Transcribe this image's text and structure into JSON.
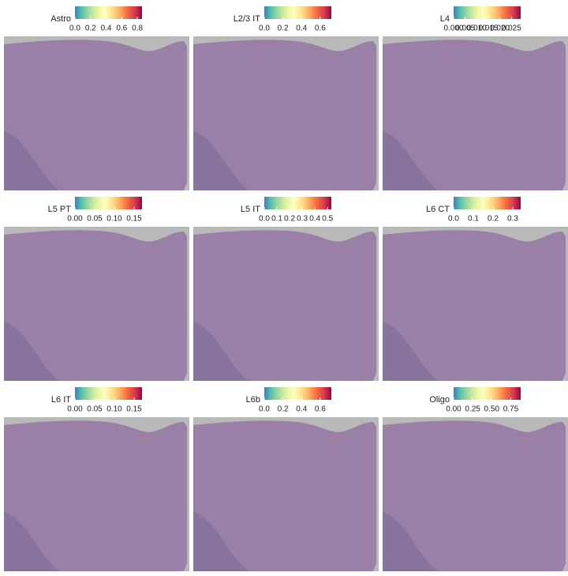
{
  "chart_data": [
    {
      "type": "spatial",
      "title": "Astro",
      "clim": [
        0,
        0.86
      ],
      "colorbar_ticks": [
        {
          "value": 0,
          "label": "0.0"
        },
        {
          "value": 0.2,
          "label": "0.2"
        },
        {
          "value": 0.4,
          "label": "0.4"
        },
        {
          "value": 0.6,
          "label": "0.6"
        },
        {
          "value": 0.8,
          "label": "0.8"
        }
      ],
      "colormap": [
        "#3288bd",
        "#66c2a5",
        "#abdda4",
        "#e6f598",
        "#ffffbf",
        "#fee08b",
        "#fdae61",
        "#f46d43",
        "#d53e4f",
        "#9e0142"
      ]
    },
    {
      "type": "spatial",
      "title": "L2/3 IT",
      "clim": [
        0,
        0.72
      ],
      "colorbar_ticks": [
        {
          "value": 0,
          "label": "0.0"
        },
        {
          "value": 0.2,
          "label": "0.2"
        },
        {
          "value": 0.4,
          "label": "0.4"
        },
        {
          "value": 0.6,
          "label": "0.6"
        }
      ],
      "colormap": [
        "#3288bd",
        "#66c2a5",
        "#abdda4",
        "#e6f598",
        "#ffffbf",
        "#fee08b",
        "#fdae61",
        "#f46d43",
        "#d53e4f",
        "#9e0142"
      ]
    },
    {
      "type": "spatial",
      "title": "L4",
      "clim": [
        0,
        0.029
      ],
      "colorbar_ticks": [
        {
          "value": 0,
          "label": "0.000"
        },
        {
          "value": 0.005,
          "label": "0.005"
        },
        {
          "value": 0.01,
          "label": "0.010"
        },
        {
          "value": 0.015,
          "label": "0.015"
        },
        {
          "value": 0.02,
          "label": "0.020"
        },
        {
          "value": 0.025,
          "label": "0.025"
        }
      ],
      "colormap": [
        "#3288bd",
        "#66c2a5",
        "#abdda4",
        "#e6f598",
        "#ffffbf",
        "#fee08b",
        "#fdae61",
        "#f46d43",
        "#d53e4f",
        "#9e0142"
      ]
    },
    {
      "type": "spatial",
      "title": "L5 PT",
      "clim": [
        0,
        0.17
      ],
      "colorbar_ticks": [
        {
          "value": 0,
          "label": "0.00"
        },
        {
          "value": 0.05,
          "label": "0.05"
        },
        {
          "value": 0.1,
          "label": "0.10"
        },
        {
          "value": 0.15,
          "label": "0.15"
        }
      ],
      "colormap": [
        "#3288bd",
        "#66c2a5",
        "#abdda4",
        "#e6f598",
        "#ffffbf",
        "#fee08b",
        "#fdae61",
        "#f46d43",
        "#d53e4f",
        "#9e0142"
      ]
    },
    {
      "type": "spatial",
      "title": "L5 IT",
      "clim": [
        0,
        0.53
      ],
      "colorbar_ticks": [
        {
          "value": 0,
          "label": "0.0"
        },
        {
          "value": 0.1,
          "label": "0.1"
        },
        {
          "value": 0.2,
          "label": "0.2"
        },
        {
          "value": 0.3,
          "label": "0.3"
        },
        {
          "value": 0.4,
          "label": "0.4"
        },
        {
          "value": 0.5,
          "label": "0.5"
        }
      ],
      "colormap": [
        "#3288bd",
        "#66c2a5",
        "#abdda4",
        "#e6f598",
        "#ffffbf",
        "#fee08b",
        "#fdae61",
        "#f46d43",
        "#d53e4f",
        "#9e0142"
      ]
    },
    {
      "type": "spatial",
      "title": "L6 CT",
      "clim": [
        0,
        0.34
      ],
      "colorbar_ticks": [
        {
          "value": 0,
          "label": "0.0"
        },
        {
          "value": 0.1,
          "label": "0.1"
        },
        {
          "value": 0.2,
          "label": "0.2"
        },
        {
          "value": 0.3,
          "label": "0.3"
        }
      ],
      "colormap": [
        "#3288bd",
        "#66c2a5",
        "#abdda4",
        "#e6f598",
        "#ffffbf",
        "#fee08b",
        "#fdae61",
        "#f46d43",
        "#d53e4f",
        "#9e0142"
      ]
    },
    {
      "type": "spatial",
      "title": "L6 IT",
      "clim": [
        0,
        0.17
      ],
      "colorbar_ticks": [
        {
          "value": 0,
          "label": "0.00"
        },
        {
          "value": 0.05,
          "label": "0.05"
        },
        {
          "value": 0.1,
          "label": "0.10"
        },
        {
          "value": 0.15,
          "label": "0.15"
        }
      ],
      "colormap": [
        "#3288bd",
        "#66c2a5",
        "#abdda4",
        "#e6f598",
        "#ffffbf",
        "#fee08b",
        "#fdae61",
        "#f46d43",
        "#d53e4f",
        "#9e0142"
      ]
    },
    {
      "type": "spatial",
      "title": "L6b",
      "clim": [
        0,
        0.72
      ],
      "colorbar_ticks": [
        {
          "value": 0,
          "label": "0.0"
        },
        {
          "value": 0.2,
          "label": "0.2"
        },
        {
          "value": 0.4,
          "label": "0.4"
        },
        {
          "value": 0.6,
          "label": "0.6"
        }
      ],
      "colormap": [
        "#3288bd",
        "#66c2a5",
        "#abdda4",
        "#e6f598",
        "#ffffbf",
        "#fee08b",
        "#fdae61",
        "#f46d43",
        "#d53e4f",
        "#9e0142"
      ]
    },
    {
      "type": "spatial",
      "title": "Oligo",
      "clim": [
        0,
        0.88
      ],
      "colorbar_ticks": [
        {
          "value": 0,
          "label": "0.00"
        },
        {
          "value": 0.25,
          "label": "0.25"
        },
        {
          "value": 0.5,
          "label": "0.50"
        },
        {
          "value": 0.75,
          "label": "0.75"
        }
      ],
      "colormap": [
        "#3288bd",
        "#66c2a5",
        "#abdda4",
        "#e6f598",
        "#ffffbf",
        "#fee08b",
        "#fdae61",
        "#f46d43",
        "#d53e4f",
        "#9e0142"
      ]
    }
  ]
}
